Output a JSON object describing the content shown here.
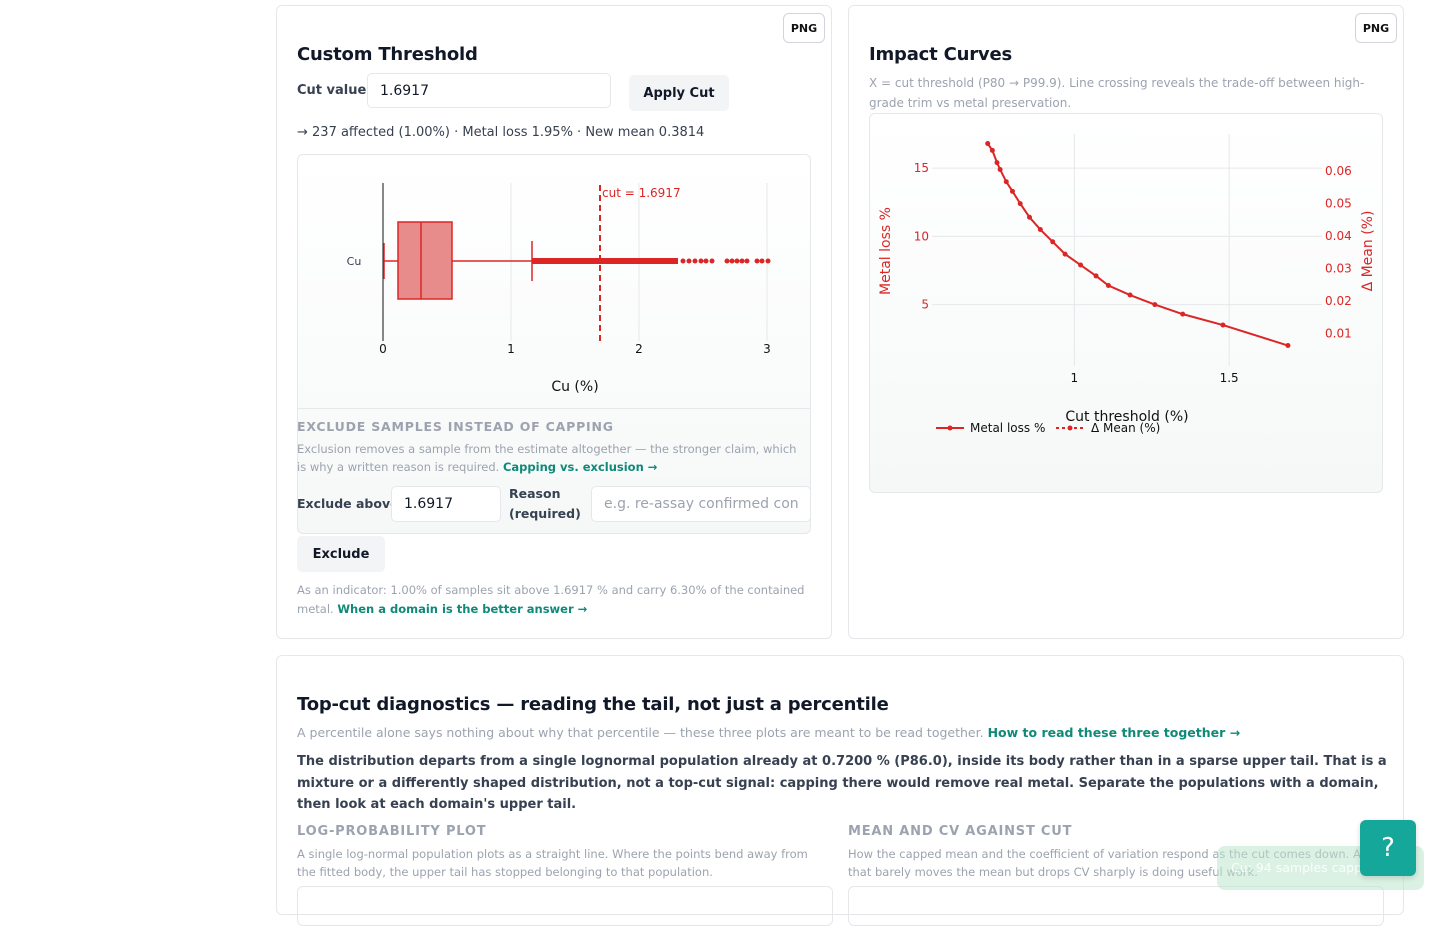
{
  "threshold_card": {
    "png_label": "PNG",
    "title": "Custom Threshold",
    "cut_label": "Cut value:",
    "cut_value": "1.6917",
    "apply_label": "Apply Cut",
    "summary": "→ 237 affected (1.00%) · Metal loss 1.95% · New mean 0.3814",
    "boxplot": {
      "category": "Cu",
      "xlabel": "Cu (%)",
      "x_ticks": [
        "0",
        "1",
        "2",
        "3"
      ],
      "cut_annotation": "cut = 1.6917"
    },
    "exclude": {
      "heading": "EXCLUDE SAMPLES INSTEAD OF CAPPING",
      "desc": "Exclusion removes a sample from the estimate altogether — the stronger claim, which is why a written reason is required.",
      "desc_link": "Capping vs. exclusion →",
      "above_label": "Exclude above",
      "above_value": "1.6917",
      "reason_label_1": "Reason",
      "reason_label_2": "(required)",
      "reason_placeholder": "e.g. re-assay confirmed contamination",
      "button_label": "Exclude"
    },
    "indicator_text": "As an indicator: 1.00% of samples sit above 1.6917 % and carry 6.30% of the contained metal.",
    "indicator_link": "When a domain is the better answer →"
  },
  "impact_card": {
    "png_label": "PNG",
    "title": "Impact Curves",
    "subtitle": "X = cut threshold (P80 → P99.9). Line crossing reveals the trade-off between high-grade trim vs metal preservation.",
    "chart_data": {
      "type": "line",
      "xlabel": "Cut threshold (%)",
      "ylabel_left": "Metal loss %",
      "ylabel_right": "Δ Mean (%)",
      "x_ticks": [
        "1",
        "1.5"
      ],
      "y_left_ticks": [
        "5",
        "10",
        "15"
      ],
      "y_right_ticks": [
        "0.01",
        "0.02",
        "0.03",
        "0.04",
        "0.05",
        "0.06"
      ],
      "xlim": [
        0.54,
        1.8
      ],
      "ylim_left": [
        0.5,
        17.5
      ],
      "ylim_right": [
        0,
        0.0714
      ],
      "series": [
        {
          "name": "Metal loss %",
          "color": "#dc2626",
          "x": [
            0.72,
            0.735,
            0.75,
            0.76,
            0.78,
            0.8,
            0.825,
            0.855,
            0.89,
            0.93,
            0.97,
            1.02,
            1.07,
            1.11,
            1.18,
            1.26,
            1.35,
            1.48,
            1.69
          ],
          "y": [
            16.8,
            16.3,
            15.4,
            14.9,
            14.0,
            13.3,
            12.4,
            11.4,
            10.5,
            9.6,
            8.7,
            7.9,
            7.1,
            6.4,
            5.7,
            5.0,
            4.3,
            3.5,
            2.0
          ]
        }
      ],
      "legend": [
        "Metal loss %",
        "Δ Mean (%)"
      ]
    }
  },
  "diagnostics": {
    "title": "Top-cut diagnostics — reading the tail, not just a percentile",
    "intro": "A percentile alone says nothing about why that percentile — these three plots are meant to be read together.",
    "intro_link": "How to read these three together →",
    "finding": "The distribution departs from a single lognormal population already at 0.7200 % (P86.0), inside its body rather than in a sparse upper tail. That is a mixture or a differently shaped distribution, not a top-cut signal: capping there would remove real metal. Separate the populations with a domain, then look at each domain's upper tail.",
    "logprob_heading": "LOG-PROBABILITY PLOT",
    "logprob_desc": "A single log-normal population plots as a straight line. Where the points bend away from the fitted body, the upper tail has stopped belonging to that population.",
    "meancv_heading": "MEAN AND CV AGAINST CUT",
    "meancv_desc": "How the capped mean and the coefficient of variation respond as the cut comes down. A cut that barely moves the mean but drops CV sharply is doing useful work."
  },
  "help": {
    "label": "?"
  },
  "toast": {
    "text": "Cu: 94 samples capped at 3"
  }
}
